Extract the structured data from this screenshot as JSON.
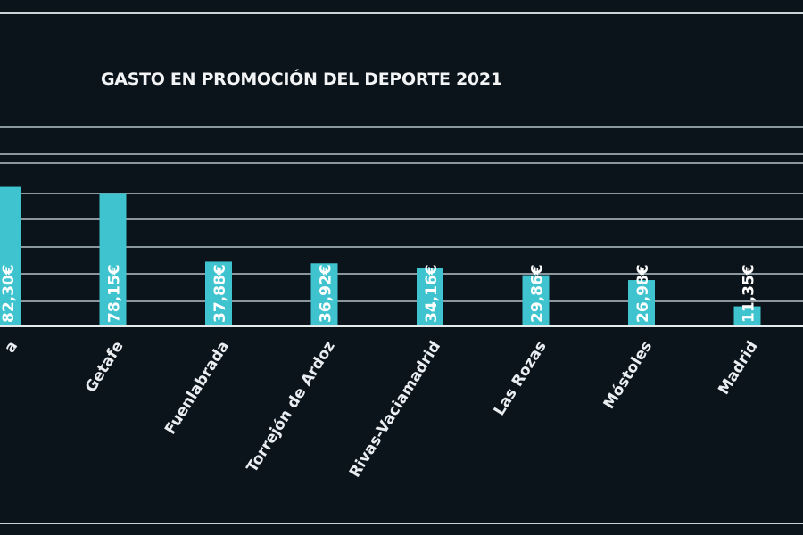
{
  "chart_data": {
    "type": "bar",
    "title": "GASTO EN PROMOCIÓN DEL DEPORTE 2021",
    "categories": [
      "a",
      "Getafe",
      "Fuenlabrada",
      "Torrejón de Ardoz",
      "Rivas-Vaciamadrid",
      "Las Rozas",
      "Móstoles",
      "Madrid"
    ],
    "values": [
      82.3,
      78.15,
      37.88,
      36.92,
      34.16,
      29.86,
      26.98,
      11.35
    ],
    "data_labels": [
      "82,30€",
      "78,15€",
      "37,88€",
      "36,92€",
      "34,16€",
      "29,86€",
      "26,98€",
      "11,35€"
    ],
    "xlabel": "",
    "ylabel": "",
    "ylim": [
      0,
      90
    ],
    "grid": true,
    "colors": {
      "background": "#0b131b",
      "bar": "#3fc4cf",
      "grid": "#8a979f",
      "text": "#ffffff"
    }
  }
}
